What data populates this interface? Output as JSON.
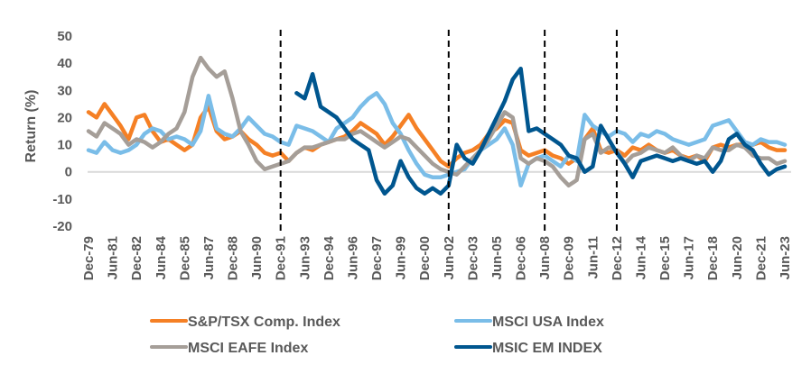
{
  "chart_data": {
    "type": "line",
    "title": "",
    "xlabel": "",
    "ylabel": "Return (%)",
    "ylim": [
      -20,
      50
    ],
    "yticks": [
      50,
      40,
      30,
      20,
      10,
      0,
      -10,
      -20
    ],
    "xtick_labels": [
      "Dec-79",
      "Jun-81",
      "Dec-82",
      "Jun-84",
      "Dec-85",
      "Jun-87",
      "Dec-88",
      "Jun-90",
      "Dec-91",
      "Jun-93",
      "Dec-94",
      "Jun-96",
      "Dec-97",
      "Jun-99",
      "Dec-00",
      "Jun-02",
      "Dec-03",
      "Jun-05",
      "Dec-06",
      "Jun-08",
      "Dec-09",
      "Jun-11",
      "Dec-12",
      "Jun-14",
      "Dec-15",
      "Jun-17",
      "Dec-18",
      "Jun-20",
      "Dec-21",
      "Jun-23"
    ],
    "x_frequency": "semi-annual",
    "x_start": "Dec-79",
    "x_end": "Jun-23",
    "grid": false,
    "zero_line": true,
    "vertical_markers": [
      "Dec-91",
      "Jun-02",
      "Jun-08",
      "Dec-12"
    ],
    "legend_position": "bottom",
    "series": [
      {
        "name": "S&P/TSX Comp. Index",
        "color": "#F58025",
        "values": [
          22,
          20,
          25,
          21,
          17,
          12,
          20,
          21,
          15,
          11,
          12,
          10,
          8,
          10,
          20,
          24,
          15,
          12,
          13,
          15,
          12,
          10,
          7,
          6,
          7,
          4,
          7,
          9,
          8,
          10,
          11,
          12,
          13,
          15,
          18,
          16,
          14,
          10,
          13,
          17,
          21,
          16,
          12,
          8,
          4,
          2,
          5,
          7,
          8,
          10,
          14,
          16,
          19,
          18,
          8,
          6,
          7,
          8,
          6,
          5,
          3,
          5,
          12,
          16,
          8,
          7,
          8,
          6,
          9,
          8,
          10,
          8,
          7,
          8,
          6,
          5,
          6,
          4,
          9,
          10,
          9,
          10,
          10,
          10,
          11,
          9,
          8,
          8
        ]
      },
      {
        "name": "MSCI USA Index",
        "color": "#7ABDE8",
        "values": [
          8,
          7,
          11,
          8,
          7,
          8,
          10,
          14,
          16,
          15,
          12,
          13,
          12,
          10,
          15,
          28,
          16,
          14,
          13,
          16,
          20,
          17,
          14,
          13,
          11,
          10,
          17,
          16,
          15,
          13,
          11,
          16,
          18,
          20,
          24,
          27,
          29,
          25,
          18,
          14,
          8,
          3,
          -1,
          -2,
          -2,
          -1,
          0,
          1,
          5,
          8,
          10,
          12,
          16,
          10,
          -5,
          3,
          5,
          6,
          4,
          2,
          6,
          4,
          21,
          17,
          15,
          13,
          15,
          14,
          11,
          14,
          13,
          15,
          14,
          12,
          11,
          10,
          11,
          12,
          17,
          18,
          19,
          15,
          11,
          10,
          12,
          11,
          11,
          10
        ]
      },
      {
        "name": "MSCI EAFE Index",
        "color": "#A59E98",
        "values": [
          15,
          13,
          18,
          16,
          14,
          10,
          12,
          11,
          9,
          11,
          14,
          16,
          22,
          35,
          42,
          38,
          35,
          37,
          27,
          15,
          10,
          4,
          1,
          2,
          3,
          4,
          7,
          9,
          9,
          10,
          11,
          12,
          12,
          14,
          15,
          13,
          11,
          9,
          11,
          13,
          12,
          9,
          6,
          3,
          1,
          0,
          -1,
          2,
          5,
          8,
          12,
          17,
          22,
          20,
          5,
          3,
          5,
          4,
          2,
          -2,
          -5,
          -3,
          12,
          14,
          7,
          9,
          8,
          3,
          6,
          7,
          9,
          8,
          7,
          9,
          6,
          4,
          6,
          5,
          9,
          8,
          8,
          10,
          9,
          6,
          5,
          5,
          3,
          4
        ]
      },
      {
        "name": "MSIC EM INDEX",
        "color": "#00568F",
        "values": [
          null,
          null,
          null,
          null,
          null,
          null,
          null,
          null,
          null,
          null,
          null,
          null,
          null,
          null,
          null,
          null,
          null,
          null,
          null,
          null,
          null,
          null,
          null,
          null,
          null,
          null,
          29,
          27,
          36,
          24,
          22,
          20,
          16,
          12,
          10,
          8,
          -3,
          -8,
          -5,
          4,
          -2,
          -6,
          -8,
          -6,
          -8,
          -5,
          10,
          5,
          3,
          8,
          14,
          20,
          26,
          34,
          38,
          15,
          16,
          14,
          12,
          10,
          6,
          5,
          0,
          2,
          17,
          12,
          7,
          3,
          -2,
          4,
          5,
          6,
          5,
          4,
          5,
          4,
          3,
          4,
          0,
          4,
          12,
          14,
          10,
          8,
          3,
          -1,
          1,
          2
        ]
      }
    ]
  },
  "legend": {
    "items": [
      {
        "label": "S&P/TSX Comp. Index",
        "color": "#F58025"
      },
      {
        "label": "MSCI USA Index",
        "color": "#7ABDE8"
      },
      {
        "label": "MSCI EAFE Index",
        "color": "#A59E98"
      },
      {
        "label": "MSIC EM INDEX",
        "color": "#00568F"
      }
    ]
  }
}
